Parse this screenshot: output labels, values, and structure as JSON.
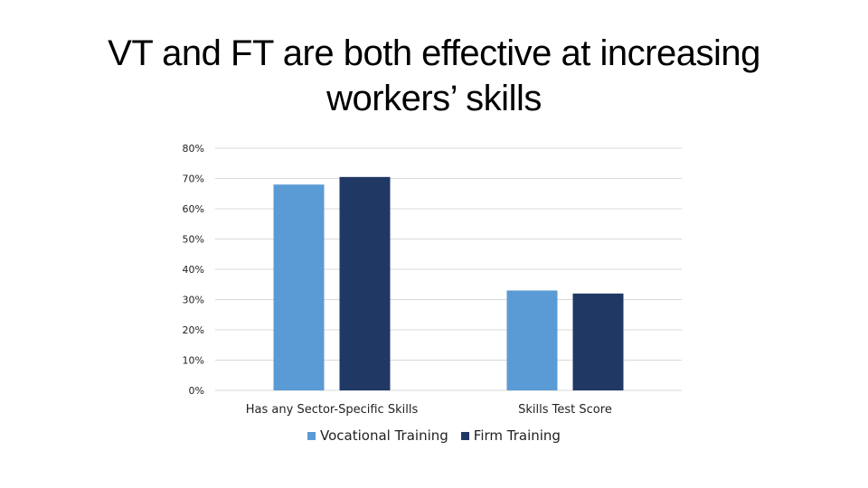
{
  "title": "VT and FT are both effective at increasing workers’ skills",
  "colors": {
    "vocational": "#5b9bd5",
    "firm": "#203864",
    "grid": "#d9d9d9"
  },
  "chart_data": {
    "type": "bar",
    "categories": [
      "Has any Sector-Specific Skills",
      "Skills Test Score"
    ],
    "series": [
      {
        "name": "Vocational Training",
        "values": [
          68,
          33
        ]
      },
      {
        "name": "Firm Training",
        "values": [
          70.5,
          32
        ]
      }
    ],
    "ylim": [
      0,
      80
    ],
    "yticks": [
      "0%",
      "10%",
      "20%",
      "30%",
      "40%",
      "50%",
      "60%",
      "70%",
      "80%"
    ],
    "grid": true,
    "legend_position": "bottom"
  }
}
